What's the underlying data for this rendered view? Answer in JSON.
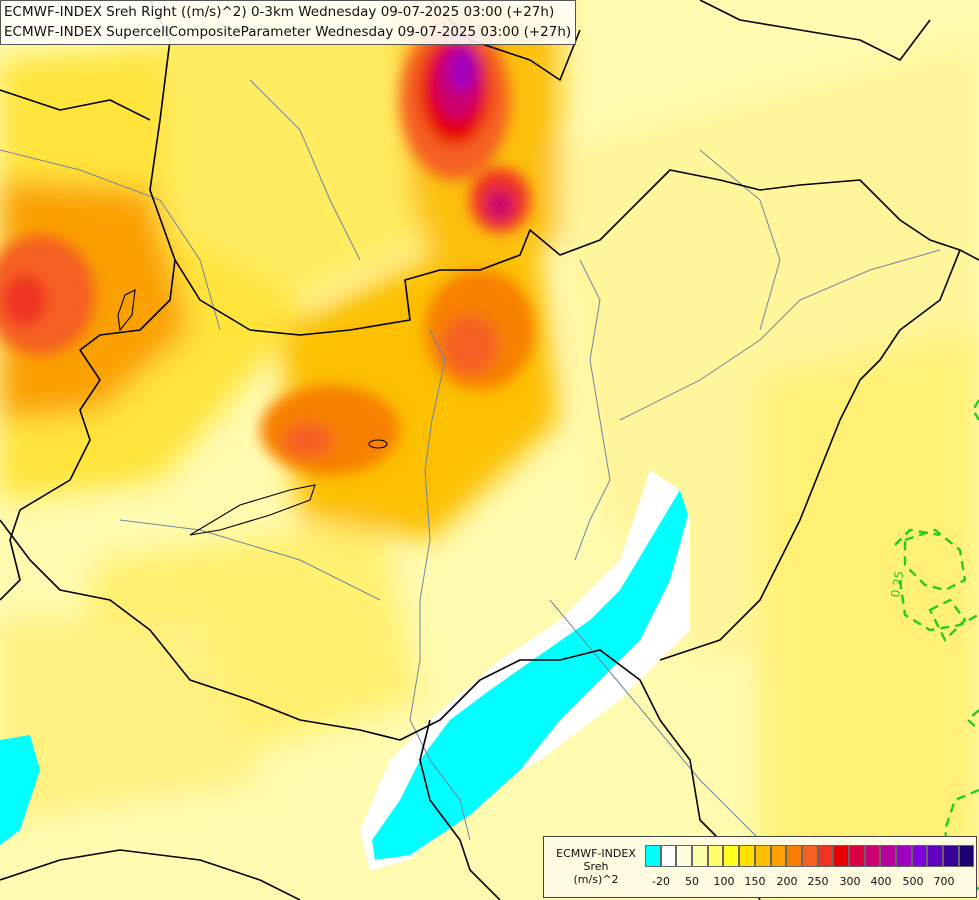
{
  "header": {
    "line1": "ECMWF-INDEX Sreh Right ((m/s)^2) 0-3km Wednesday 09-07-2025 03:00 (+27h)",
    "line2": "ECMWF-INDEX SupercellCompositeParameter Wednesday 09-07-2025 03:00 (+27h)"
  },
  "map": {
    "contour_label": "0.25",
    "contour_color": "#22cc22",
    "border_color": "#000000",
    "river_color": "#6f86a6"
  },
  "legend": {
    "model": "ECMWF-INDEX",
    "name": "Sreh",
    "unit": "(m/s)^2",
    "colors": [
      "#00ffff",
      "#ffffff",
      "#ffffe0",
      "#ffffa8",
      "#ffff70",
      "#ffff20",
      "#fde000",
      "#fcc000",
      "#faa000",
      "#f88000",
      "#f56020",
      "#f03020",
      "#e60000",
      "#dc0040",
      "#cc0070",
      "#b8009c",
      "#a000c0",
      "#8000e0",
      "#6000c0",
      "#3a009a",
      "#1a0070"
    ],
    "tick_labels": [
      "-20",
      "50",
      "100",
      "150",
      "200",
      "250",
      "300",
      "400",
      "500",
      "700"
    ]
  }
}
